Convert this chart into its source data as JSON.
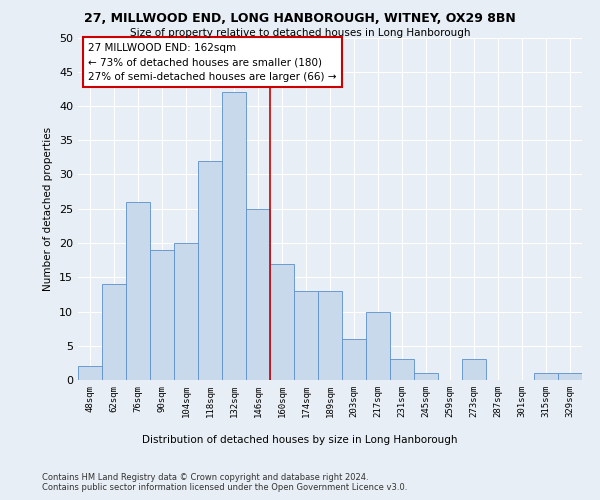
{
  "title": "27, MILLWOOD END, LONG HANBOROUGH, WITNEY, OX29 8BN",
  "subtitle": "Size of property relative to detached houses in Long Hanborough",
  "xlabel_bottom": "Distribution of detached houses by size in Long Hanborough",
  "ylabel": "Number of detached properties",
  "categories": [
    "48sqm",
    "62sqm",
    "76sqm",
    "90sqm",
    "104sqm",
    "118sqm",
    "132sqm",
    "146sqm",
    "160sqm",
    "174sqm",
    "189sqm",
    "203sqm",
    "217sqm",
    "231sqm",
    "245sqm",
    "259sqm",
    "273sqm",
    "287sqm",
    "301sqm",
    "315sqm",
    "329sqm"
  ],
  "values": [
    2,
    14,
    26,
    19,
    20,
    32,
    42,
    25,
    17,
    13,
    13,
    6,
    10,
    3,
    1,
    0,
    3,
    0,
    0,
    1,
    1
  ],
  "bar_color": "#c8d9ec",
  "bar_edge_color": "#5b8fc9",
  "vline_color": "#cc0000",
  "annotation_text": "27 MILLWOOD END: 162sqm\n← 73% of detached houses are smaller (180)\n27% of semi-detached houses are larger (66) →",
  "annotation_box_color": "#ffffff",
  "annotation_box_edge": "#cc0000",
  "bg_color": "#e8eef5",
  "grid_color": "#ffffff",
  "footnote1": "Contains HM Land Registry data © Crown copyright and database right 2024.",
  "footnote2": "Contains public sector information licensed under the Open Government Licence v3.0.",
  "ylim": [
    0,
    50
  ],
  "yticks": [
    0,
    5,
    10,
    15,
    20,
    25,
    30,
    35,
    40,
    45,
    50
  ]
}
